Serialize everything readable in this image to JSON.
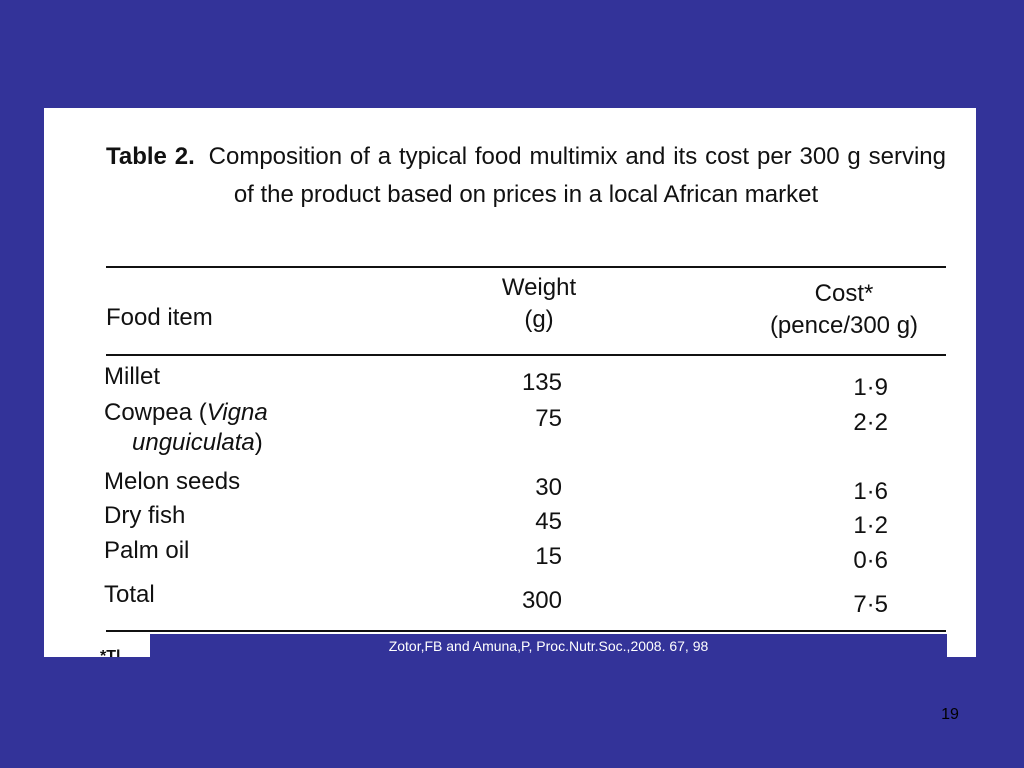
{
  "table": {
    "caption_number": "Table 2.",
    "caption_text": "Composition of a typical food multimix and its cost per 300 g serving of the product based on prices in a local African market",
    "headers": {
      "food": "Food item",
      "weight_line1": "Weight",
      "weight_line2": "(g)",
      "cost_line1": "Cost*",
      "cost_line2": "(pence/300 g)"
    },
    "rows": [
      {
        "item": "Millet",
        "weight": "135",
        "cost": "1·9"
      },
      {
        "item_prefix": "Cowpea (",
        "item_sci1": "Vigna",
        "item_sci2": "unguiculata",
        "item_suffix": ")",
        "weight": "75",
        "cost": "2·2"
      },
      {
        "item": "Melon seeds",
        "weight": "30",
        "cost": "1·6"
      },
      {
        "item": "Dry fish",
        "weight": "45",
        "cost": "1·2"
      },
      {
        "item": "Palm oil",
        "weight": "15",
        "cost": "0·6"
      },
      {
        "item": "Total",
        "weight": "300",
        "cost": "7·5"
      }
    ],
    "footnote_stub": "*Tl"
  },
  "citation": "Zotor,FB and Amuna,P, Proc.Nutr.Soc.,2008. 67, 98",
  "page_number": "19",
  "colors": {
    "slide_background": "#333399",
    "panel_background": "#ffffff",
    "text": "#111111"
  }
}
